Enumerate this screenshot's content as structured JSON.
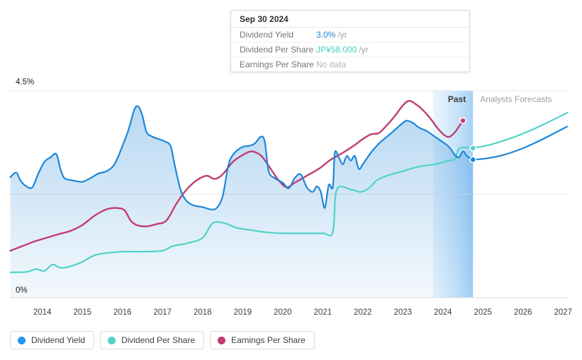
{
  "tooltip": {
    "date": "Sep 30 2024",
    "rows": [
      {
        "label": "Dividend Yield",
        "value": "3.0%",
        "suffix": "/yr",
        "value_color": "#1e88d8"
      },
      {
        "label": "Dividend Per Share",
        "value": "JP¥58.000",
        "suffix": "/yr",
        "value_color": "#45cfc1"
      },
      {
        "label": "Earnings Per Share",
        "value": "No data",
        "suffix": "",
        "value_color": "#b4b4b4"
      }
    ]
  },
  "y_axis_labels": {
    "top": "4.5%",
    "bottom": "0%"
  },
  "annotations": {
    "past": "Past",
    "forecast": "Analysts Forecasts"
  },
  "legend": [
    {
      "label": "Dividend Yield",
      "color": "#2196f3"
    },
    {
      "label": "Dividend Per Share",
      "color": "#4fd3c6"
    },
    {
      "label": "Earnings Per Share",
      "color": "#c23d71"
    }
  ],
  "chart_data": {
    "type": "area",
    "xlabel": "",
    "ylabel": "",
    "x_axis": {
      "min": 2013.19,
      "max": 2027.1,
      "ticks": [
        2014,
        2015,
        2016,
        2017,
        2018,
        2019,
        2020,
        2021,
        2022,
        2023,
        2024,
        2025,
        2026,
        2027
      ]
    },
    "y_axis": {
      "min": 0,
      "max": 4.5,
      "unit": "%",
      "gridlines": [
        0,
        2.25,
        4.5
      ]
    },
    "past_band": {
      "start": 2023.75,
      "end": 2024.75,
      "color_start": "rgba(198,228,250,0.35)",
      "color_end": "rgba(117,183,240,0.65)"
    },
    "series": [
      {
        "name": "Dividend Yield",
        "type": "area",
        "color": "#1f86d7",
        "fill_top": "rgba(33,134,215,0.32)",
        "fill_bottom": "rgba(33,134,215,0.05)",
        "past": [
          [
            2013.2,
            2.62
          ],
          [
            2013.35,
            2.72
          ],
          [
            2013.45,
            2.55
          ],
          [
            2013.6,
            2.42
          ],
          [
            2013.75,
            2.4
          ],
          [
            2013.9,
            2.7
          ],
          [
            2014.05,
            2.95
          ],
          [
            2014.2,
            3.05
          ],
          [
            2014.35,
            3.12
          ],
          [
            2014.45,
            2.8
          ],
          [
            2014.55,
            2.6
          ],
          [
            2014.75,
            2.55
          ],
          [
            2015.0,
            2.52
          ],
          [
            2015.2,
            2.6
          ],
          [
            2015.4,
            2.7
          ],
          [
            2015.6,
            2.75
          ],
          [
            2015.8,
            2.9
          ],
          [
            2016.0,
            3.3
          ],
          [
            2016.15,
            3.65
          ],
          [
            2016.3,
            4.1
          ],
          [
            2016.4,
            4.15
          ],
          [
            2016.5,
            3.95
          ],
          [
            2016.6,
            3.6
          ],
          [
            2016.75,
            3.5
          ],
          [
            2016.9,
            3.45
          ],
          [
            2017.05,
            3.4
          ],
          [
            2017.2,
            3.3
          ],
          [
            2017.3,
            2.9
          ],
          [
            2017.45,
            2.35
          ],
          [
            2017.6,
            2.1
          ],
          [
            2017.8,
            2.0
          ],
          [
            2018.0,
            1.97
          ],
          [
            2018.2,
            1.92
          ],
          [
            2018.35,
            1.95
          ],
          [
            2018.5,
            2.2
          ],
          [
            2018.65,
            2.9
          ],
          [
            2018.8,
            3.15
          ],
          [
            2019.0,
            3.28
          ],
          [
            2019.15,
            3.3
          ],
          [
            2019.3,
            3.35
          ],
          [
            2019.45,
            3.5
          ],
          [
            2019.55,
            3.4
          ],
          [
            2019.65,
            2.75
          ],
          [
            2019.8,
            2.6
          ],
          [
            2020.0,
            2.5
          ],
          [
            2020.15,
            2.38
          ],
          [
            2020.3,
            2.6
          ],
          [
            2020.45,
            2.68
          ],
          [
            2020.6,
            2.4
          ],
          [
            2020.75,
            2.3
          ],
          [
            2020.85,
            2.42
          ],
          [
            2020.95,
            2.3
          ],
          [
            2021.05,
            1.95
          ],
          [
            2021.15,
            2.45
          ],
          [
            2021.25,
            2.4
          ],
          [
            2021.3,
            3.15
          ],
          [
            2021.4,
            3.05
          ],
          [
            2021.5,
            2.9
          ],
          [
            2021.6,
            3.08
          ],
          [
            2021.7,
            2.98
          ],
          [
            2021.8,
            3.08
          ],
          [
            2021.9,
            2.8
          ],
          [
            2022.0,
            2.9
          ],
          [
            2022.2,
            3.15
          ],
          [
            2022.4,
            3.35
          ],
          [
            2022.6,
            3.5
          ],
          [
            2022.8,
            3.65
          ],
          [
            2023.0,
            3.8
          ],
          [
            2023.1,
            3.85
          ],
          [
            2023.25,
            3.8
          ],
          [
            2023.4,
            3.7
          ],
          [
            2023.6,
            3.62
          ],
          [
            2023.8,
            3.5
          ],
          [
            2024.0,
            3.38
          ],
          [
            2024.15,
            3.28
          ],
          [
            2024.3,
            3.1
          ],
          [
            2024.4,
            3.05
          ],
          [
            2024.5,
            3.18
          ],
          [
            2024.6,
            3.08
          ],
          [
            2024.75,
            3.0
          ]
        ],
        "forecast": [
          [
            2024.75,
            3.0
          ],
          [
            2025.1,
            3.03
          ],
          [
            2025.5,
            3.1
          ],
          [
            2026.0,
            3.25
          ],
          [
            2026.5,
            3.45
          ],
          [
            2027.1,
            3.72
          ]
        ],
        "end_dot": [
          2024.75,
          3.0
        ]
      },
      {
        "name": "Dividend Per Share",
        "type": "line",
        "color": "#4fd3c6",
        "past": [
          [
            2013.2,
            0.55
          ],
          [
            2013.6,
            0.56
          ],
          [
            2013.85,
            0.62
          ],
          [
            2014.05,
            0.58
          ],
          [
            2014.25,
            0.72
          ],
          [
            2014.45,
            0.65
          ],
          [
            2014.7,
            0.68
          ],
          [
            2015.0,
            0.78
          ],
          [
            2015.3,
            0.92
          ],
          [
            2015.6,
            0.97
          ],
          [
            2016.0,
            1.0
          ],
          [
            2016.5,
            1.0
          ],
          [
            2017.0,
            1.02
          ],
          [
            2017.25,
            1.12
          ],
          [
            2017.6,
            1.18
          ],
          [
            2018.0,
            1.3
          ],
          [
            2018.25,
            1.62
          ],
          [
            2018.55,
            1.62
          ],
          [
            2018.85,
            1.52
          ],
          [
            2019.2,
            1.47
          ],
          [
            2019.6,
            1.42
          ],
          [
            2020.0,
            1.4
          ],
          [
            2020.5,
            1.4
          ],
          [
            2021.0,
            1.4
          ],
          [
            2021.25,
            1.42
          ],
          [
            2021.35,
            2.35
          ],
          [
            2021.7,
            2.35
          ],
          [
            2021.95,
            2.3
          ],
          [
            2022.15,
            2.38
          ],
          [
            2022.35,
            2.55
          ],
          [
            2022.6,
            2.65
          ],
          [
            2023.0,
            2.75
          ],
          [
            2023.4,
            2.85
          ],
          [
            2023.8,
            2.9
          ],
          [
            2024.1,
            2.97
          ],
          [
            2024.3,
            3.02
          ],
          [
            2024.42,
            3.25
          ],
          [
            2024.75,
            3.25
          ]
        ],
        "forecast": [
          [
            2024.75,
            3.25
          ],
          [
            2025.2,
            3.33
          ],
          [
            2025.8,
            3.5
          ],
          [
            2026.4,
            3.72
          ],
          [
            2027.1,
            4.02
          ]
        ],
        "end_dot": [
          2024.75,
          3.25
        ]
      },
      {
        "name": "Earnings Per Share",
        "type": "line",
        "color": "#c23d71",
        "past": [
          [
            2013.2,
            1.02
          ],
          [
            2013.5,
            1.12
          ],
          [
            2013.8,
            1.22
          ],
          [
            2014.1,
            1.3
          ],
          [
            2014.4,
            1.38
          ],
          [
            2014.7,
            1.45
          ],
          [
            2015.0,
            1.58
          ],
          [
            2015.3,
            1.78
          ],
          [
            2015.6,
            1.92
          ],
          [
            2015.85,
            1.95
          ],
          [
            2016.05,
            1.9
          ],
          [
            2016.2,
            1.68
          ],
          [
            2016.35,
            1.58
          ],
          [
            2016.6,
            1.55
          ],
          [
            2016.85,
            1.6
          ],
          [
            2017.1,
            1.68
          ],
          [
            2017.35,
            2.05
          ],
          [
            2017.6,
            2.35
          ],
          [
            2017.85,
            2.55
          ],
          [
            2018.1,
            2.65
          ],
          [
            2018.3,
            2.58
          ],
          [
            2018.5,
            2.68
          ],
          [
            2018.75,
            2.95
          ],
          [
            2019.0,
            3.1
          ],
          [
            2019.2,
            3.18
          ],
          [
            2019.35,
            3.15
          ],
          [
            2019.5,
            3.05
          ],
          [
            2019.7,
            2.8
          ],
          [
            2019.9,
            2.55
          ],
          [
            2020.1,
            2.4
          ],
          [
            2020.3,
            2.5
          ],
          [
            2020.6,
            2.65
          ],
          [
            2020.9,
            2.8
          ],
          [
            2021.2,
            3.0
          ],
          [
            2021.5,
            3.15
          ],
          [
            2021.8,
            3.32
          ],
          [
            2022.0,
            3.45
          ],
          [
            2022.2,
            3.55
          ],
          [
            2022.4,
            3.58
          ],
          [
            2022.6,
            3.75
          ],
          [
            2022.8,
            3.95
          ],
          [
            2023.0,
            4.18
          ],
          [
            2023.15,
            4.28
          ],
          [
            2023.3,
            4.22
          ],
          [
            2023.5,
            4.08
          ],
          [
            2023.7,
            3.88
          ],
          [
            2023.9,
            3.65
          ],
          [
            2024.1,
            3.5
          ],
          [
            2024.25,
            3.55
          ],
          [
            2024.4,
            3.72
          ],
          [
            2024.5,
            3.85
          ]
        ],
        "forecast": [],
        "end_dot": [
          2024.5,
          3.85
        ]
      }
    ]
  }
}
